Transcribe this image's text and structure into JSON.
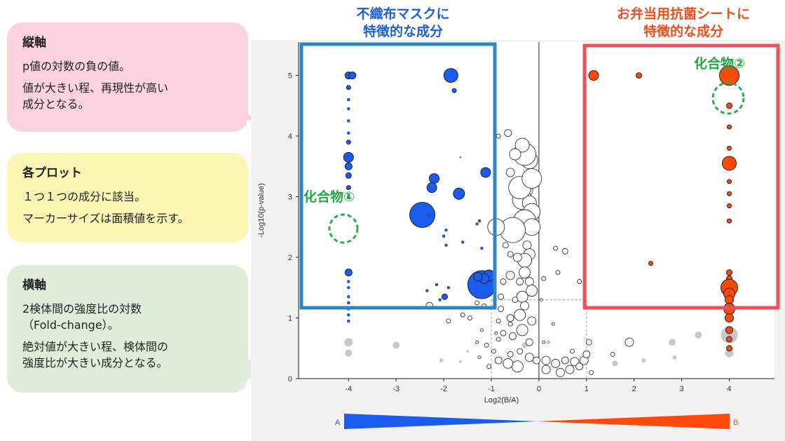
{
  "callouts": {
    "y_axis": {
      "title": "縦軸",
      "lines": [
        "p値の対数の負の値。",
        "値が大きい程、再現性が高い",
        "成分となる。"
      ]
    },
    "plots": {
      "title": "各プロット",
      "lines": [
        "１つ１つの成分に該当。",
        "マーカーサイズは面積値を示す。"
      ]
    },
    "x_axis": {
      "title": "横軸",
      "lines": [
        "2検体間の強度比の対数",
        "（Fold-change）。",
        "絶対値が大きい程、検体間の",
        "強度比が大きい成分となる。"
      ]
    }
  },
  "headers": {
    "left": [
      "不織布マスクに",
      "特徴的な成分"
    ],
    "right": [
      "お弁当用抗菌シートに",
      "特徴的な成分"
    ]
  },
  "annotations": {
    "compound1": "化合物①",
    "compound2": "化合物②"
  },
  "gradient": {
    "a": "A",
    "b": "B"
  },
  "colors": {
    "blue": "#1a5cf0",
    "orange": "#ff4a0a",
    "gray": "#c8c8c8",
    "left_box": "#2e86c1",
    "right_box": "#f0505a",
    "dashed_circle": "#2eaa4d"
  },
  "chart_data": {
    "type": "scatter",
    "xlabel": "Log2(B/A)",
    "ylabel": "-Log10(p-value)",
    "xlim": [
      -5.05,
      4.95
    ],
    "ylim": [
      0,
      5.55
    ],
    "xticks": [
      -4,
      -3,
      -2,
      -1,
      0,
      1,
      2,
      3,
      4
    ],
    "yticks": [
      0,
      1,
      2,
      3,
      4,
      5
    ],
    "thresholds": {
      "x": [
        -1,
        1
      ],
      "y": 1.3
    },
    "series": [
      {
        "color_key": "blue",
        "points": [
          [
            -4,
            5,
            5
          ],
          [
            -3.92,
            5,
            5
          ],
          [
            -1.85,
            5,
            10
          ],
          [
            -1.78,
            4.75,
            3
          ],
          [
            -4,
            4.8,
            3
          ],
          [
            -4,
            4.6,
            2
          ],
          [
            -4,
            4.45,
            2
          ],
          [
            -4,
            4.25,
            2
          ],
          [
            -4,
            4.05,
            2
          ],
          [
            -4,
            3.9,
            3
          ],
          [
            -4,
            3.65,
            7
          ],
          [
            -4,
            3.5,
            5
          ],
          [
            -4,
            3.35,
            4
          ],
          [
            -4,
            3.15,
            3
          ],
          [
            -4,
            3.0,
            2
          ],
          [
            -4,
            2.7,
            1
          ],
          [
            -1.12,
            3.4,
            7
          ],
          [
            -2.2,
            3.3,
            7
          ],
          [
            -2.25,
            3.15,
            7
          ],
          [
            -1.68,
            3.05,
            8
          ],
          [
            -2.45,
            2.7,
            18
          ],
          [
            -1.65,
            3.65,
            1
          ],
          [
            -2.3,
            2.7,
            2
          ],
          [
            -1.25,
            2.6,
            2
          ],
          [
            -1.3,
            2.55,
            2
          ],
          [
            -1.95,
            2.45,
            2
          ],
          [
            -2.0,
            2.35,
            2
          ],
          [
            -1.6,
            2.25,
            2
          ],
          [
            -1.95,
            2.2,
            2
          ],
          [
            -1.2,
            2.15,
            2
          ],
          [
            -1.2,
            1.55,
            20
          ],
          [
            -1.05,
            1.7,
            8
          ],
          [
            -1.15,
            1.65,
            7
          ],
          [
            -1.28,
            1.68,
            6
          ],
          [
            -1.98,
            1.35,
            4
          ],
          [
            -2.08,
            1.3,
            2
          ],
          [
            -2.15,
            1.55,
            2
          ],
          [
            -1.9,
            1.5,
            2
          ],
          [
            -4,
            1.75,
            5
          ],
          [
            -4,
            1.6,
            2
          ],
          [
            -4,
            1.5,
            2
          ],
          [
            -4,
            1.35,
            2
          ],
          [
            -4,
            1.25,
            2
          ],
          [
            -4,
            1.15,
            2
          ],
          [
            -4,
            1.05,
            2
          ],
          [
            -4,
            0.95,
            2
          ],
          [
            -2.35,
            1.45,
            2
          ]
        ]
      },
      {
        "color_key": "orange",
        "points": [
          [
            1.15,
            5,
            7
          ],
          [
            2.1,
            5,
            4
          ],
          [
            4,
            5,
            14
          ],
          [
            4,
            4.5,
            4
          ],
          [
            4,
            4.15,
            3
          ],
          [
            4,
            3.8,
            3
          ],
          [
            4,
            3.55,
            10
          ],
          [
            4,
            3.25,
            3
          ],
          [
            4,
            3.05,
            3
          ],
          [
            4,
            2.85,
            3
          ],
          [
            4,
            2.6,
            3
          ],
          [
            2.35,
            1.9,
            3
          ],
          [
            4,
            1.75,
            4
          ],
          [
            4,
            1.65,
            4
          ],
          [
            4,
            1.5,
            12
          ],
          [
            4,
            1.4,
            8
          ],
          [
            4,
            1.3,
            6
          ],
          [
            4,
            1.15,
            8
          ],
          [
            4,
            1.0,
            6
          ],
          [
            4,
            0.8,
            5
          ],
          [
            4,
            0.65,
            4
          ],
          [
            4,
            0.5,
            4
          ]
        ]
      }
    ],
    "gray_points": [
      [
        -4,
        0.6,
        6
      ],
      [
        -4,
        0.42,
        5
      ],
      [
        -3,
        0.55,
        5
      ],
      [
        -2.05,
        0.3,
        3
      ],
      [
        -1.65,
        0.28,
        2
      ],
      [
        -1.5,
        0.45,
        2
      ],
      [
        1.6,
        0.25,
        4
      ],
      [
        2.2,
        0.3,
        3
      ],
      [
        2.8,
        0.6,
        5
      ],
      [
        3.35,
        0.72,
        5
      ],
      [
        2.85,
        0.35,
        3
      ],
      [
        4,
        0.72,
        12
      ],
      [
        4,
        0.42,
        6
      ],
      [
        -0.3,
        0.55,
        4
      ],
      [
        0.2,
        0.6,
        3
      ]
    ],
    "open_points": [
      [
        -0.65,
        4.05,
        5
      ],
      [
        -0.85,
        4.0,
        3
      ],
      [
        -0.25,
        3.1,
        8
      ],
      [
        -0.35,
        2.95,
        14
      ],
      [
        -0.2,
        2.9,
        10
      ],
      [
        -0.15,
        2.75,
        12
      ],
      [
        -0.3,
        2.6,
        16
      ],
      [
        -0.15,
        2.5,
        12
      ],
      [
        -0.55,
        2.45,
        18
      ],
      [
        -0.9,
        2.5,
        12
      ],
      [
        -0.4,
        3.15,
        16
      ],
      [
        -0.15,
        3.3,
        14
      ],
      [
        -0.2,
        3.6,
        12
      ],
      [
        -0.3,
        3.7,
        16
      ],
      [
        -0.35,
        3.85,
        10
      ],
      [
        -0.5,
        3.7,
        8
      ],
      [
        -0.6,
        3.4,
        6
      ],
      [
        -0.25,
        2.2,
        6
      ],
      [
        -0.2,
        2.05,
        8
      ],
      [
        -0.3,
        1.95,
        10
      ],
      [
        -0.45,
        2.0,
        6
      ],
      [
        -0.6,
        2.05,
        4
      ],
      [
        -0.7,
        2.2,
        4
      ],
      [
        -0.3,
        1.75,
        8
      ],
      [
        -0.6,
        1.7,
        6
      ],
      [
        -0.75,
        1.6,
        4
      ],
      [
        -0.2,
        1.6,
        6
      ],
      [
        -0.4,
        1.6,
        5
      ],
      [
        -0.15,
        1.45,
        8
      ],
      [
        -0.35,
        1.35,
        8
      ],
      [
        -0.5,
        1.3,
        4
      ],
      [
        -0.8,
        1.35,
        4
      ],
      [
        -0.3,
        1.2,
        6
      ],
      [
        -0.4,
        1.05,
        8
      ],
      [
        -0.6,
        1.0,
        5
      ],
      [
        -0.8,
        1.15,
        4
      ],
      [
        -0.15,
        0.95,
        6
      ],
      [
        -0.35,
        0.8,
        8
      ],
      [
        -0.55,
        0.7,
        5
      ],
      [
        -0.75,
        0.75,
        4
      ],
      [
        -0.2,
        0.6,
        5
      ],
      [
        -0.4,
        0.45,
        4
      ],
      [
        -0.6,
        0.4,
        4
      ],
      [
        -0.2,
        0.35,
        6
      ],
      [
        -0.05,
        0.3,
        5
      ],
      [
        0.15,
        0.3,
        6
      ],
      [
        0.35,
        0.25,
        6
      ],
      [
        0.55,
        0.3,
        5
      ],
      [
        0.75,
        0.28,
        6
      ],
      [
        0.95,
        0.3,
        6
      ],
      [
        1.0,
        0.4,
        5
      ],
      [
        1.05,
        0.6,
        4
      ],
      [
        -0.45,
        0.2,
        8
      ],
      [
        -0.65,
        0.25,
        7
      ],
      [
        -0.85,
        0.3,
        5
      ],
      [
        0.15,
        0.15,
        6
      ],
      [
        0.45,
        0.1,
        6
      ],
      [
        0.65,
        0.15,
        6
      ],
      [
        0.85,
        0.2,
        5
      ],
      [
        -1.0,
        1.55,
        4
      ],
      [
        -1.15,
        1.2,
        3
      ],
      [
        -1.3,
        1.25,
        3
      ],
      [
        -1.45,
        1.0,
        3
      ],
      [
        -1.2,
        0.8,
        2
      ],
      [
        -1.3,
        0.6,
        2
      ],
      [
        -1.1,
        0.55,
        3
      ],
      [
        -0.95,
        0.45,
        3
      ],
      [
        -0.85,
        0.95,
        3
      ],
      [
        -0.85,
        0.65,
        3
      ],
      [
        -2.3,
        1.2,
        5
      ],
      [
        -1.9,
        0.95,
        3
      ],
      [
        -1.6,
        1.05,
        3
      ],
      [
        -1.3,
        1.35,
        2
      ],
      [
        0.35,
        2.15,
        3
      ],
      [
        0.55,
        2.1,
        4
      ],
      [
        0.4,
        1.75,
        3
      ],
      [
        0.85,
        1.6,
        3
      ],
      [
        0.1,
        1.65,
        3
      ],
      [
        0.05,
        1.3,
        2
      ],
      [
        0.3,
        0.9,
        2
      ],
      [
        0.1,
        0.6,
        2
      ],
      [
        1.9,
        0.6,
        6
      ],
      [
        1.55,
        0.4,
        3
      ],
      [
        1.1,
        0.1,
        3
      ],
      [
        0.7,
        0.45,
        3
      ],
      [
        -1.05,
        0.2,
        3
      ],
      [
        -1.25,
        0.35,
        2
      ],
      [
        -0.6,
        0.9,
        3
      ],
      [
        -0.9,
        0.75,
        2
      ]
    ]
  }
}
